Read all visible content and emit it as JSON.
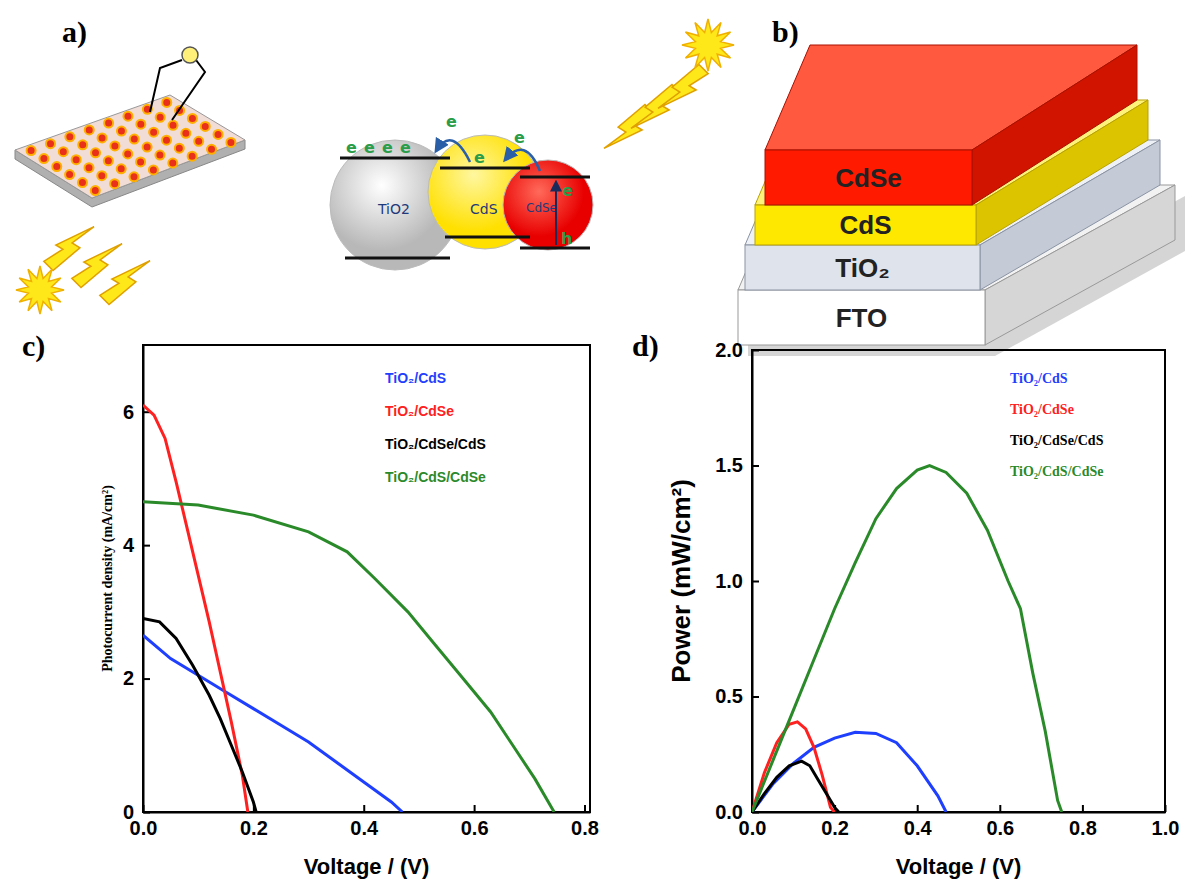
{
  "panel_labels": [
    "a)",
    "b)",
    "c)",
    "d)"
  ],
  "diagram": {
    "particles": [
      "TiO2",
      "CdS",
      "CdSe"
    ],
    "electron": "e",
    "hole": "h"
  },
  "layers": {
    "labels": [
      "CdSe",
      "CdS",
      "TiO₂",
      "FTO"
    ]
  },
  "chart_data": [
    {
      "type": "line",
      "x_label": "Voltage / (V)",
      "y_label": "Photocurrent density (mA/cm²)",
      "xlim": [
        0,
        0.81
      ],
      "xticks": [
        {
          "value": 0,
          "label": "0.0"
        },
        0.2,
        0.4,
        0.6,
        0.8
      ],
      "ylim": [
        0,
        7
      ],
      "yticks": [
        0,
        2,
        4,
        6
      ],
      "legend": "upper right",
      "series": [
        {
          "name": "TiO₂/CdS",
          "color": "#1f3fff",
          "x": [
            0,
            0.05,
            0.1,
            0.15,
            0.2,
            0.25,
            0.3,
            0.35,
            0.4,
            0.45,
            0.47
          ],
          "values": [
            2.65,
            2.3,
            2.05,
            1.8,
            1.55,
            1.3,
            1.05,
            0.75,
            0.45,
            0.15,
            0
          ]
        },
        {
          "name": "TiO₂/CdSe",
          "color": "#ff2020",
          "x": [
            0,
            0.02,
            0.04,
            0.06,
            0.08,
            0.1,
            0.12,
            0.14,
            0.16,
            0.18,
            0.19
          ],
          "values": [
            6.1,
            5.95,
            5.6,
            4.95,
            4.25,
            3.55,
            2.85,
            2.1,
            1.35,
            0.55,
            0
          ]
        },
        {
          "name": "TiO₂/CdSe/CdS",
          "color": "#000000",
          "x": [
            0,
            0.03,
            0.06,
            0.09,
            0.12,
            0.14,
            0.16,
            0.18,
            0.2,
            0.205
          ],
          "values": [
            2.9,
            2.85,
            2.6,
            2.2,
            1.75,
            1.4,
            1.0,
            0.6,
            0.15,
            0
          ]
        },
        {
          "name": "TiO₂/CdS/CdSe",
          "color": "#2a8a2a",
          "x": [
            0,
            0.1,
            0.2,
            0.3,
            0.37,
            0.42,
            0.48,
            0.53,
            0.58,
            0.63,
            0.67,
            0.71,
            0.745
          ],
          "values": [
            4.65,
            4.6,
            4.45,
            4.2,
            3.9,
            3.5,
            3.0,
            2.5,
            2.0,
            1.5,
            1.0,
            0.5,
            0
          ]
        }
      ]
    },
    {
      "type": "line",
      "x_label": "Voltage / (V)",
      "y_label": "Power (mW/cm²)",
      "xlim": [
        0,
        1
      ],
      "xticks": [
        {
          "value": 0,
          "label": "0.0"
        },
        0.2,
        0.4,
        0.6,
        0.8,
        {
          "value": 1,
          "label": "1.0"
        }
      ],
      "ylim": [
        0,
        2
      ],
      "yticks": [
        {
          "value": 0,
          "label": "0.0"
        },
        0.5,
        {
          "value": 1,
          "label": "1.0"
        },
        1.5,
        {
          "value": 2,
          "label": "2.0"
        }
      ],
      "legend": "upper right",
      "series": [
        {
          "name": "TiO₂/CdS",
          "color": "#1f3fff",
          "x": [
            0,
            0.05,
            0.1,
            0.15,
            0.2,
            0.25,
            0.3,
            0.35,
            0.4,
            0.45,
            0.47
          ],
          "values": [
            0,
            0.12,
            0.21,
            0.28,
            0.32,
            0.345,
            0.34,
            0.3,
            0.2,
            0.07,
            0
          ]
        },
        {
          "name": "TiO₂/CdSe",
          "color": "#ff2020",
          "x": [
            0,
            0.03,
            0.06,
            0.09,
            0.11,
            0.13,
            0.15,
            0.17,
            0.19,
            0.2
          ],
          "values": [
            0,
            0.17,
            0.3,
            0.38,
            0.39,
            0.36,
            0.28,
            0.16,
            0.02,
            0
          ]
        },
        {
          "name": "TiO₂/CdSe/CdS",
          "color": "#000000",
          "x": [
            0,
            0.03,
            0.06,
            0.09,
            0.12,
            0.14,
            0.16,
            0.18,
            0.2,
            0.21
          ],
          "values": [
            0,
            0.08,
            0.15,
            0.2,
            0.22,
            0.2,
            0.14,
            0.08,
            0.02,
            0
          ]
        },
        {
          "name": "TiO₂/CdS/CdSe",
          "color": "#2a8a2a",
          "x": [
            0,
            0.05,
            0.1,
            0.15,
            0.2,
            0.25,
            0.3,
            0.35,
            0.4,
            0.43,
            0.47,
            0.52,
            0.57,
            0.62,
            0.65,
            0.68,
            0.71,
            0.74,
            0.75
          ],
          "values": [
            0,
            0.22,
            0.44,
            0.66,
            0.88,
            1.08,
            1.27,
            1.4,
            1.48,
            1.5,
            1.47,
            1.38,
            1.22,
            1.0,
            0.88,
            0.6,
            0.35,
            0.05,
            0
          ]
        }
      ]
    }
  ]
}
